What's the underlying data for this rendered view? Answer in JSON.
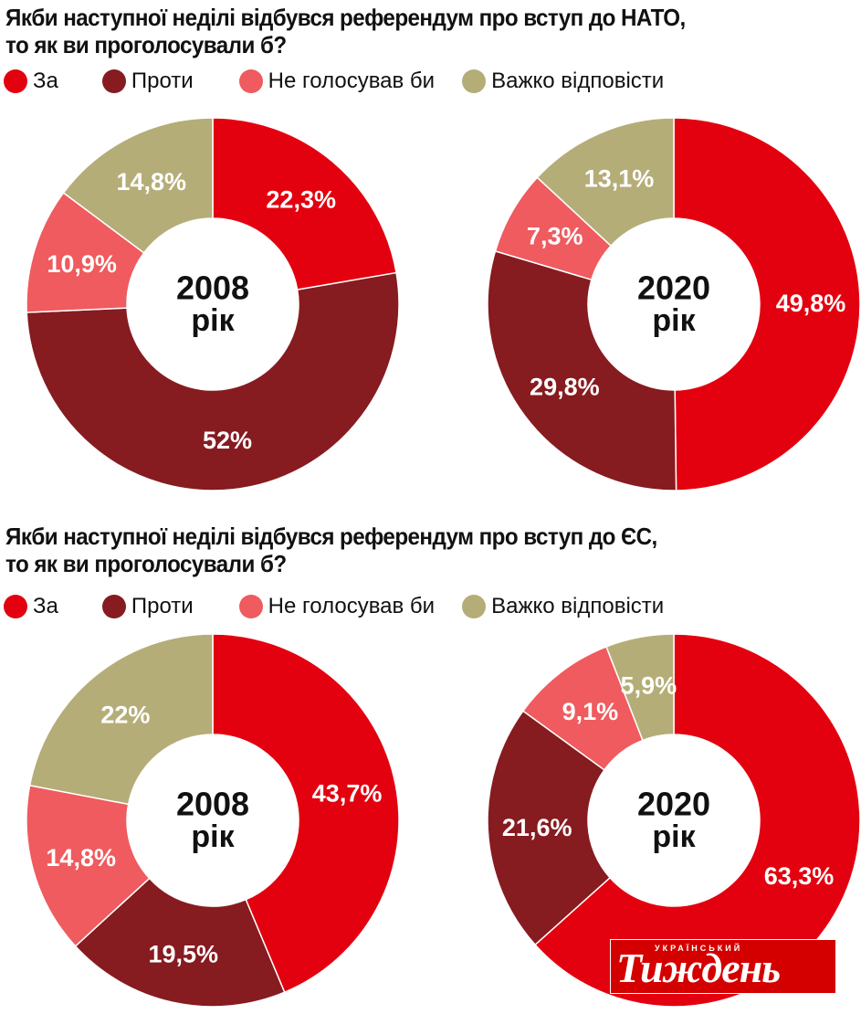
{
  "colors": {
    "za": "#e3000f",
    "proty": "#861b20",
    "ne_holosuvav": "#ef5b5e",
    "vazhko": "#b5ad78"
  },
  "sections": [
    {
      "title_line1": "Якби наступної неділі відбувся референдум про вступ до НАТО,",
      "title_line2": "то як ви проголосували б?",
      "legend": [
        "За",
        "Проти",
        "Не голосував би",
        "Важко відповісти"
      ]
    },
    {
      "title_line1": "Якби наступної неділі відбувся референдум про вступ до ЄС,",
      "title_line2": "то як ви проголосували б?",
      "legend": [
        "За",
        "Проти",
        "Не голосував би",
        "Важко відповісти"
      ]
    }
  ],
  "logo": {
    "top_text": "УКРАЇНСЬКИЙ",
    "main_text": "Тиждень"
  },
  "chart_data": [
    {
      "type": "pie",
      "title": "Якби наступної неділі відбувся референдум про вступ до НАТО, то як ви проголосували б?",
      "center_label": [
        "2008",
        "рік"
      ],
      "categories": [
        "За",
        "Проти",
        "Не голосував би",
        "Важко відповісти"
      ],
      "values": [
        22.3,
        52,
        10.9,
        14.8
      ],
      "labels": [
        "22,3%",
        "52%",
        "10,9%",
        "14,8%"
      ]
    },
    {
      "type": "pie",
      "title": "Якби наступної неділі відбувся референдум про вступ до НАТО, то як ви проголосували б?",
      "center_label": [
        "2020",
        "рік"
      ],
      "categories": [
        "За",
        "Проти",
        "Не голосував би",
        "Важко відповісти"
      ],
      "values": [
        49.8,
        29.8,
        7.3,
        13.1
      ],
      "labels": [
        "49,8%",
        "29,8%",
        "7,3%",
        "13,1%"
      ]
    },
    {
      "type": "pie",
      "title": "Якби наступної неділі відбувся референдум про вступ до ЄС, то як ви проголосували б?",
      "center_label": [
        "2008",
        "рік"
      ],
      "categories": [
        "За",
        "Проти",
        "Не голосував би",
        "Важко відповісти"
      ],
      "values": [
        43.7,
        19.5,
        14.8,
        22
      ],
      "labels": [
        "43,7%",
        "19,5%",
        "14,8%",
        "22%"
      ]
    },
    {
      "type": "pie",
      "title": "Якби наступної неділі відбувся референдум про вступ до ЄС, то як ви проголосували б?",
      "center_label": [
        "2020",
        "рік"
      ],
      "categories": [
        "За",
        "Проти",
        "Не голосував би",
        "Важко відповісти"
      ],
      "values": [
        63.3,
        21.6,
        9.1,
        5.9
      ],
      "labels": [
        "63,3%",
        "21,6%",
        "9,1%",
        "5,9%"
      ]
    }
  ]
}
